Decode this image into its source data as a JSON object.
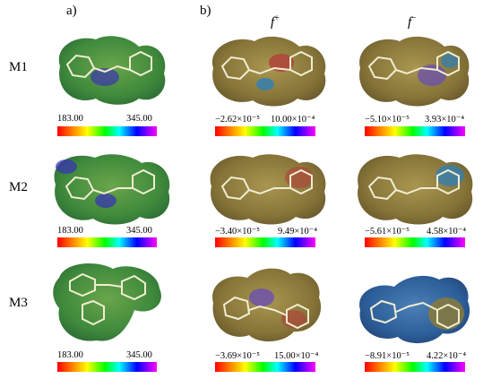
{
  "panels": {
    "a": "a)",
    "b": "b)"
  },
  "columns": {
    "fplus": {
      "letter": "f",
      "sup": "+"
    },
    "fminus": {
      "letter": "f",
      "sup": "−"
    }
  },
  "rows": [
    {
      "label": "M1",
      "esp": {
        "min": "183.00",
        "max": "345.00"
      },
      "fplus": {
        "min": "−2.62×10⁻⁵",
        "max": "10.00×10⁻⁴"
      },
      "fminus": {
        "min": "−5.10×10⁻⁵",
        "max": "3.93×10⁻⁴"
      }
    },
    {
      "label": "M2",
      "esp": {
        "min": "183.00",
        "max": "345.00"
      },
      "fplus": {
        "min": "−3.40×10⁻⁵",
        "max": "9.49×10⁻⁴"
      },
      "fminus": {
        "min": "−5.61×10⁻⁵",
        "max": "4.58×10⁻⁴"
      }
    },
    {
      "label": "M3",
      "esp": {
        "min": "183.00",
        "max": "345.00"
      },
      "fplus": {
        "min": "−3.69×10⁻⁵",
        "max": "15.00×10⁻⁴"
      },
      "fminus": {
        "min": "−8.91×10⁻⁵",
        "max": "4.22×10⁻⁴"
      }
    }
  ],
  "colors": {
    "esp_surface": "#3f8a3c",
    "esp_positive": "#3a35b0",
    "fukui_surface": "#8a7a3a",
    "fukui_red": "#b0403a",
    "fukui_blue": "#2e7fb8",
    "fukui_violet": "#6a4fb0"
  }
}
